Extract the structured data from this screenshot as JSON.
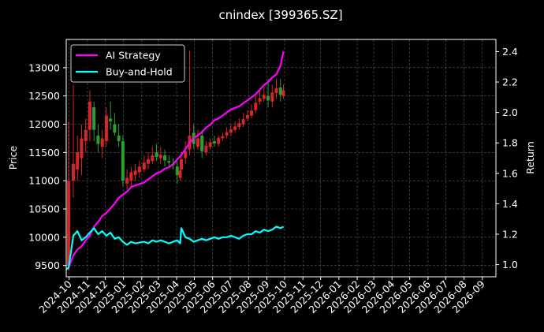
{
  "chart_data": {
    "type": "line",
    "title": "cnindex [399365.SZ]",
    "ylabel": "Price",
    "y2label": "Return",
    "ylim": [
      9300,
      13500
    ],
    "y2lim": [
      0.92,
      2.48
    ],
    "yticks": [
      9500,
      10000,
      10500,
      11000,
      11500,
      12000,
      12500,
      13000
    ],
    "y2ticks": [
      "1.0",
      "1.2",
      "1.4",
      "1.6",
      "1.8",
      "2.0",
      "2.2",
      "2.4"
    ],
    "y2tick_values": [
      1.0,
      1.2,
      1.4,
      1.6,
      1.8,
      2.0,
      2.2,
      2.4
    ],
    "xlim": [
      "2024-09-26",
      "2026-09-24"
    ],
    "xticks": [
      "2024-10",
      "2024-11",
      "2024-12",
      "2025-01",
      "2025-02",
      "2025-03",
      "2025-04",
      "2025-05",
      "2025-06",
      "2025-07",
      "2025-08",
      "2025-09",
      "2025-10",
      "2025-11",
      "2025-12",
      "2026-01",
      "2026-02",
      "2026-03",
      "2026-04",
      "2026-05",
      "2026-06",
      "2026-07",
      "2026-08",
      "2026-09"
    ],
    "grid": true,
    "legend_position": "top-left",
    "candles": {
      "name": "Price",
      "up_color": "#d62728",
      "down_color": "#2ca02c",
      "dates": [
        "2024-09-30",
        "2024-10-08",
        "2024-10-15",
        "2024-10-22",
        "2024-10-29",
        "2024-11-05",
        "2024-11-12",
        "2024-11-19",
        "2024-11-26",
        "2024-12-03",
        "2024-12-10",
        "2024-12-17",
        "2024-12-24",
        "2024-12-31",
        "2025-01-07",
        "2025-01-14",
        "2025-01-21",
        "2025-01-28",
        "2025-02-05",
        "2025-02-12",
        "2025-02-19",
        "2025-02-26",
        "2025-03-05",
        "2025-03-12",
        "2025-03-19",
        "2025-03-26",
        "2025-04-02",
        "2025-04-07",
        "2025-04-09",
        "2025-04-16",
        "2025-04-23",
        "2025-04-30",
        "2025-05-07",
        "2025-05-14",
        "2025-05-21",
        "2025-05-28",
        "2025-06-04",
        "2025-06-11",
        "2025-06-18",
        "2025-06-25",
        "2025-07-02",
        "2025-07-09",
        "2025-07-16",
        "2025-07-23",
        "2025-07-30",
        "2025-08-06",
        "2025-08-13",
        "2025-08-20",
        "2025-08-27",
        "2025-09-03",
        "2025-09-10",
        "2025-09-17",
        "2025-09-24",
        "2025-09-29"
      ],
      "open": [
        9500,
        11000,
        11200,
        11400,
        11700,
        11900,
        12300,
        11800,
        11600,
        11700,
        12100,
        12000,
        11800,
        11700,
        10950,
        11000,
        11100,
        11150,
        11200,
        11300,
        11350,
        11500,
        11400,
        11450,
        11350,
        11300,
        11250,
        11050,
        11200,
        11400,
        11550,
        11850,
        11600,
        11800,
        11500,
        11600,
        11700,
        11650,
        11750,
        11800,
        11850,
        11900,
        11950,
        12000,
        12100,
        12150,
        12250,
        12400,
        12450,
        12500,
        12400,
        12550,
        12650,
        12500
      ],
      "close": [
        11000,
        11300,
        11500,
        11750,
        11900,
        12400,
        11900,
        11650,
        11750,
        12150,
        12050,
        11850,
        11700,
        11000,
        11050,
        11150,
        11180,
        11250,
        11320,
        11380,
        11450,
        11420,
        11460,
        11360,
        11320,
        11280,
        11100,
        11180,
        11380,
        11520,
        11800,
        11650,
        11750,
        11520,
        11620,
        11680,
        11660,
        11760,
        11790,
        11860,
        11910,
        11960,
        12020,
        12090,
        12160,
        12240,
        12380,
        12460,
        12520,
        12420,
        12560,
        12640,
        12520,
        12600
      ],
      "high": [
        12050,
        12700,
        11800,
        12000,
        12100,
        12600,
        12400,
        12000,
        11900,
        12300,
        12400,
        12200,
        12000,
        11800,
        11200,
        11250,
        11300,
        11350,
        11450,
        11500,
        11600,
        11650,
        11600,
        11550,
        11450,
        11400,
        11350,
        11300,
        11500,
        11700,
        13300,
        12000,
        11900,
        11900,
        11700,
        11750,
        11800,
        11800,
        11850,
        11950,
        12000,
        12050,
        12100,
        12200,
        12250,
        12350,
        12500,
        12600,
        12650,
        12800,
        12700,
        12800,
        12800,
        12700
      ],
      "low": [
        9400,
        10700,
        11000,
        11100,
        11500,
        11700,
        11700,
        11500,
        11400,
        11600,
        11900,
        11800,
        11600,
        10900,
        10850,
        10900,
        11000,
        11050,
        11150,
        11200,
        11300,
        11350,
        11300,
        11250,
        11250,
        11200,
        10950,
        11000,
        11100,
        11300,
        11450,
        11550,
        11550,
        11400,
        11450,
        11550,
        11600,
        11600,
        11700,
        11750,
        11800,
        11850,
        11900,
        11950,
        12050,
        12100,
        12200,
        12350,
        12400,
        12300,
        12300,
        12450,
        12400,
        12450
      ]
    },
    "series": [
      {
        "name": "AI Strategy",
        "color": "#ff00ff",
        "axis": "right",
        "x": [
          "2024-09-26",
          "2024-09-30",
          "2024-10-08",
          "2024-10-15",
          "2024-10-22",
          "2024-10-29",
          "2024-11-05",
          "2024-11-12",
          "2024-11-19",
          "2024-11-26",
          "2024-12-03",
          "2024-12-10",
          "2024-12-17",
          "2024-12-24",
          "2024-12-31",
          "2025-01-07",
          "2025-01-14",
          "2025-01-21",
          "2025-02-05",
          "2025-02-12",
          "2025-02-19",
          "2025-02-26",
          "2025-03-05",
          "2025-03-12",
          "2025-03-19",
          "2025-03-26",
          "2025-04-02",
          "2025-04-09",
          "2025-04-16",
          "2025-04-23",
          "2025-04-30",
          "2025-05-07",
          "2025-05-14",
          "2025-05-21",
          "2025-05-28",
          "2025-06-04",
          "2025-06-11",
          "2025-06-18",
          "2025-06-25",
          "2025-07-02",
          "2025-07-09",
          "2025-07-16",
          "2025-07-23",
          "2025-07-30",
          "2025-08-06",
          "2025-08-13",
          "2025-08-20",
          "2025-08-27",
          "2025-09-03",
          "2025-09-10",
          "2025-09-17",
          "2025-09-24",
          "2025-09-29"
        ],
        "values": [
          0.97,
          0.98,
          1.06,
          1.1,
          1.12,
          1.16,
          1.19,
          1.25,
          1.28,
          1.32,
          1.34,
          1.37,
          1.4,
          1.44,
          1.46,
          1.48,
          1.51,
          1.52,
          1.54,
          1.56,
          1.58,
          1.6,
          1.61,
          1.63,
          1.64,
          1.66,
          1.69,
          1.72,
          1.76,
          1.8,
          1.83,
          1.85,
          1.87,
          1.9,
          1.92,
          1.95,
          1.96,
          1.98,
          2.0,
          2.02,
          2.03,
          2.04,
          2.06,
          2.08,
          2.1,
          2.12,
          2.15,
          2.18,
          2.2,
          2.23,
          2.25,
          2.31,
          2.4
        ]
      },
      {
        "name": "Buy-and-Hold",
        "color": "#00ffff",
        "axis": "right",
        "x": [
          "2024-09-26",
          "2024-09-30",
          "2024-10-08",
          "2024-10-15",
          "2024-10-22",
          "2024-10-29",
          "2024-11-05",
          "2024-11-12",
          "2024-11-19",
          "2024-11-26",
          "2024-12-03",
          "2024-12-10",
          "2024-12-17",
          "2024-12-24",
          "2024-12-31",
          "2025-01-07",
          "2025-01-14",
          "2025-01-21",
          "2025-02-05",
          "2025-02-12",
          "2025-02-19",
          "2025-02-26",
          "2025-03-05",
          "2025-03-12",
          "2025-03-19",
          "2025-03-26",
          "2025-04-02",
          "2025-04-07",
          "2025-04-09",
          "2025-04-16",
          "2025-04-23",
          "2025-04-30",
          "2025-05-07",
          "2025-05-14",
          "2025-05-21",
          "2025-05-28",
          "2025-06-04",
          "2025-06-11",
          "2025-06-18",
          "2025-06-25",
          "2025-07-02",
          "2025-07-09",
          "2025-07-16",
          "2025-07-23",
          "2025-07-30",
          "2025-08-06",
          "2025-08-13",
          "2025-08-20",
          "2025-08-27",
          "2025-09-03",
          "2025-09-10",
          "2025-09-17",
          "2025-09-24",
          "2025-09-29"
        ],
        "values": [
          0.97,
          0.98,
          1.19,
          1.22,
          1.16,
          1.18,
          1.21,
          1.24,
          1.2,
          1.22,
          1.19,
          1.21,
          1.17,
          1.18,
          1.15,
          1.13,
          1.15,
          1.14,
          1.15,
          1.14,
          1.16,
          1.15,
          1.16,
          1.15,
          1.14,
          1.15,
          1.16,
          1.14,
          1.24,
          1.18,
          1.17,
          1.15,
          1.16,
          1.17,
          1.16,
          1.17,
          1.18,
          1.17,
          1.18,
          1.18,
          1.19,
          1.18,
          1.17,
          1.19,
          1.2,
          1.2,
          1.22,
          1.21,
          1.23,
          1.22,
          1.23,
          1.25,
          1.24,
          1.25
        ]
      }
    ]
  }
}
